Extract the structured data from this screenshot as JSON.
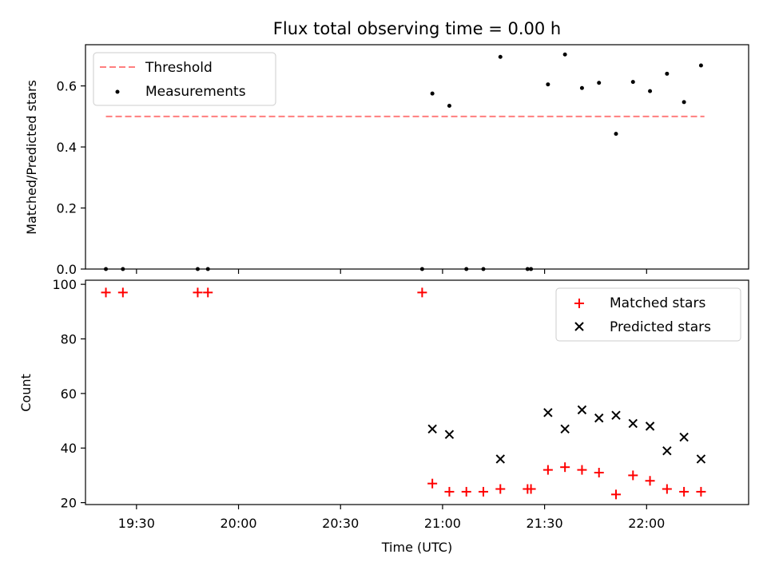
{
  "title": "Flux total observing time = 0.00 h",
  "chart_data": [
    {
      "type": "scatter",
      "panel": "top",
      "title": "Flux total observing time = 0.00 h",
      "xlabel": "",
      "ylabel": "Matched/Predicted stars",
      "ylim": [
        0,
        0.735
      ],
      "yticks": [
        0.0,
        0.2,
        0.4,
        0.6
      ],
      "ytick_labels": [
        "0.0",
        "0.2",
        "0.4",
        "0.6"
      ],
      "grid": false,
      "legend": "upper-left",
      "threshold": {
        "name": "Threshold",
        "value": 0.5,
        "x_start": "19:21",
        "x_end": "22:17",
        "color": "#ff7f7f"
      },
      "series": [
        {
          "name": "Measurements",
          "color": "#000000",
          "marker": "dot",
          "x": [
            "19:21",
            "19:26",
            "19:48",
            "19:51",
            "20:54",
            "20:57",
            "21:02",
            "21:07",
            "21:12",
            "21:17",
            "21:25",
            "21:26",
            "21:31",
            "21:36",
            "21:41",
            "21:46",
            "21:51",
            "21:56",
            "22:01",
            "22:06",
            "22:11",
            "22:16"
          ],
          "y": [
            0,
            0,
            0,
            0,
            0,
            0.575,
            0.535,
            0,
            0,
            0.695,
            0,
            0,
            0.605,
            0.703,
            0.593,
            0.61,
            0.443,
            0.613,
            0.583,
            0.64,
            0.547,
            0.667
          ]
        }
      ]
    },
    {
      "type": "scatter",
      "panel": "bottom",
      "xlabel": "Time (UTC)",
      "ylabel": "Count",
      "ylim": [
        19.3,
        101.5
      ],
      "yticks": [
        20,
        40,
        60,
        80,
        100
      ],
      "ytick_labels": [
        "20",
        "40",
        "60",
        "80",
        "100"
      ],
      "xlim": [
        "19:15",
        "22:30"
      ],
      "xticks": [
        "19:30",
        "20:00",
        "20:30",
        "21:00",
        "21:30",
        "22:00"
      ],
      "xtick_labels": [
        "19:30",
        "20:00",
        "20:30",
        "21:00",
        "21:30",
        "22:00"
      ],
      "grid": false,
      "legend": "upper-right",
      "series": [
        {
          "name": "Matched stars",
          "color": "#ff0000",
          "marker": "plus",
          "x": [
            "19:21",
            "19:26",
            "19:48",
            "19:51",
            "20:54",
            "20:57",
            "21:02",
            "21:07",
            "21:12",
            "21:17",
            "21:25",
            "21:26",
            "21:31",
            "21:36",
            "21:41",
            "21:46",
            "21:51",
            "21:56",
            "22:01",
            "22:06",
            "22:11",
            "22:16"
          ],
          "y": [
            97,
            97,
            97,
            97,
            97,
            27,
            24,
            24,
            24,
            25,
            25,
            25,
            32,
            33,
            32,
            31,
            23,
            30,
            28,
            25,
            24,
            24
          ]
        },
        {
          "name": "Predicted stars",
          "color": "#000000",
          "marker": "x",
          "x": [
            "20:57",
            "21:02",
            "21:17",
            "21:31",
            "21:36",
            "21:41",
            "21:46",
            "21:51",
            "21:56",
            "22:01",
            "22:06",
            "22:11",
            "22:16"
          ],
          "y": [
            47,
            45,
            36,
            53,
            47,
            54,
            51,
            52,
            49,
            48,
            39,
            44,
            36
          ]
        }
      ]
    }
  ]
}
